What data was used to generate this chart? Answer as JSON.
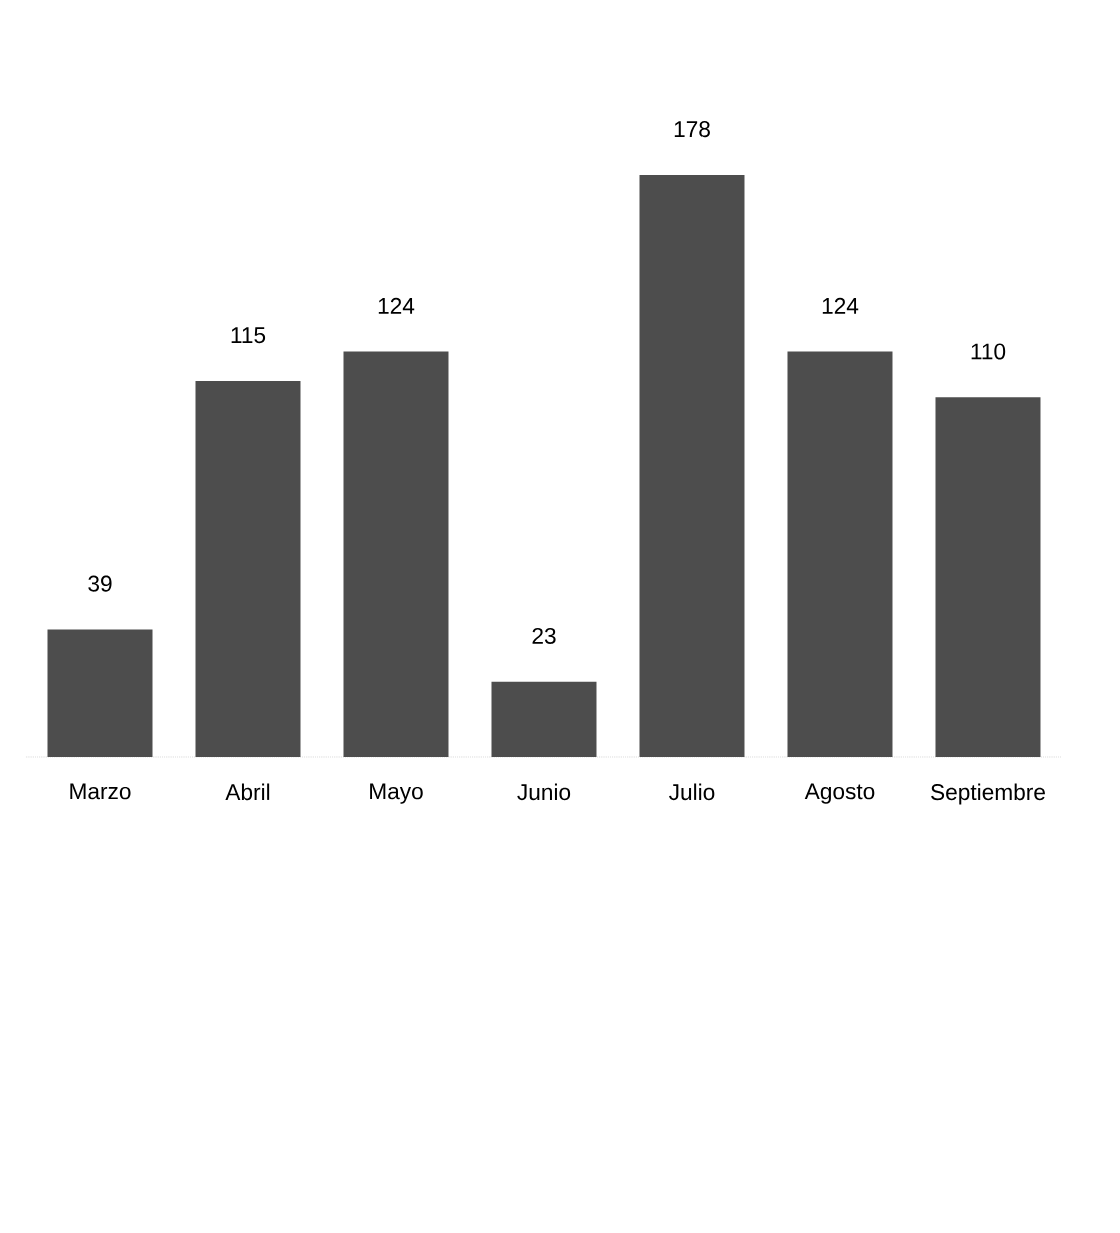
{
  "chart_data": {
    "type": "bar",
    "categories": [
      "Marzo",
      "Abril",
      "Mayo",
      "Junio",
      "Julio",
      "Agosto",
      "Septiembre"
    ],
    "values": [
      39,
      115,
      124,
      23,
      178,
      124,
      110
    ],
    "color": "#4d4d4d",
    "data_labels": true
  }
}
